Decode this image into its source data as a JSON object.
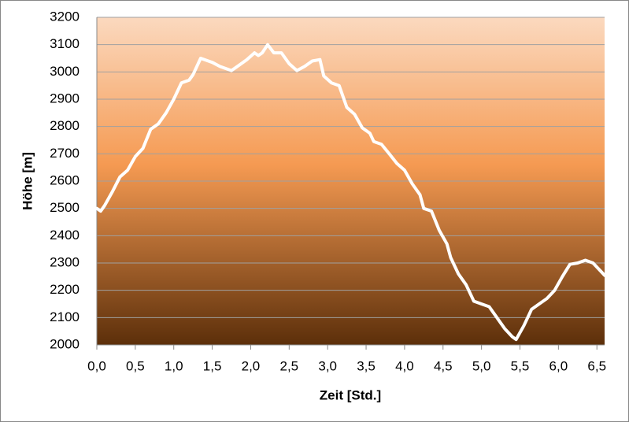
{
  "chart_data": {
    "type": "line",
    "x_label": "Zeit [Std.]",
    "y_label": "Höhe [m]",
    "x": [
      0.0,
      0.05,
      0.1,
      0.2,
      0.3,
      0.4,
      0.5,
      0.6,
      0.7,
      0.8,
      0.9,
      1.0,
      1.1,
      1.2,
      1.25,
      1.35,
      1.5,
      1.6,
      1.75,
      1.85,
      1.95,
      2.05,
      2.1,
      2.15,
      2.22,
      2.3,
      2.4,
      2.5,
      2.6,
      2.7,
      2.8,
      2.9,
      2.95,
      3.05,
      3.15,
      3.25,
      3.35,
      3.45,
      3.55,
      3.6,
      3.7,
      3.8,
      3.9,
      4.0,
      4.1,
      4.2,
      4.25,
      4.35,
      4.45,
      4.55,
      4.6,
      4.7,
      4.8,
      4.9,
      5.0,
      5.1,
      5.2,
      5.3,
      5.4,
      5.45,
      5.55,
      5.65,
      5.75,
      5.85,
      5.95,
      6.05,
      6.15,
      6.25,
      6.35,
      6.45,
      6.55,
      6.6
    ],
    "series": [
      {
        "name": "Höhe",
        "color": "#ffffff",
        "values": [
          2500,
          2490,
          2510,
          2560,
          2615,
          2640,
          2690,
          2720,
          2790,
          2810,
          2850,
          2900,
          2960,
          2970,
          2990,
          3050,
          3035,
          3020,
          3005,
          3025,
          3045,
          3070,
          3060,
          3070,
          3100,
          3070,
          3070,
          3030,
          3005,
          3020,
          3040,
          3045,
          2985,
          2960,
          2950,
          2870,
          2845,
          2795,
          2775,
          2745,
          2735,
          2700,
          2665,
          2640,
          2590,
          2550,
          2500,
          2490,
          2420,
          2370,
          2320,
          2260,
          2220,
          2160,
          2150,
          2140,
          2100,
          2060,
          2030,
          2020,
          2070,
          2130,
          2150,
          2170,
          2200,
          2250,
          2295,
          2300,
          2310,
          2300,
          2270,
          2255
        ]
      }
    ],
    "xlim": [
      0,
      6.6
    ],
    "ylim": [
      2000,
      3200
    ],
    "xticks": [
      {
        "value": 0,
        "label": "0,0"
      },
      {
        "value": 0.5,
        "label": "0,5"
      },
      {
        "value": 1,
        "label": "1,0"
      },
      {
        "value": 1.5,
        "label": "1,5"
      },
      {
        "value": 2,
        "label": "2,0"
      },
      {
        "value": 2.5,
        "label": "2,5"
      },
      {
        "value": 3,
        "label": "3,0"
      },
      {
        "value": 3.5,
        "label": "3,5"
      },
      {
        "value": 4,
        "label": "4,0"
      },
      {
        "value": 4.5,
        "label": "4,5"
      },
      {
        "value": 5,
        "label": "5,0"
      },
      {
        "value": 5.5,
        "label": "5,5"
      },
      {
        "value": 6,
        "label": "6,0"
      },
      {
        "value": 6.5,
        "label": "6,5"
      }
    ],
    "yticks": [
      2000,
      2100,
      2200,
      2300,
      2400,
      2500,
      2600,
      2700,
      2800,
      2900,
      3000,
      3100,
      3200
    ],
    "grid": true
  }
}
